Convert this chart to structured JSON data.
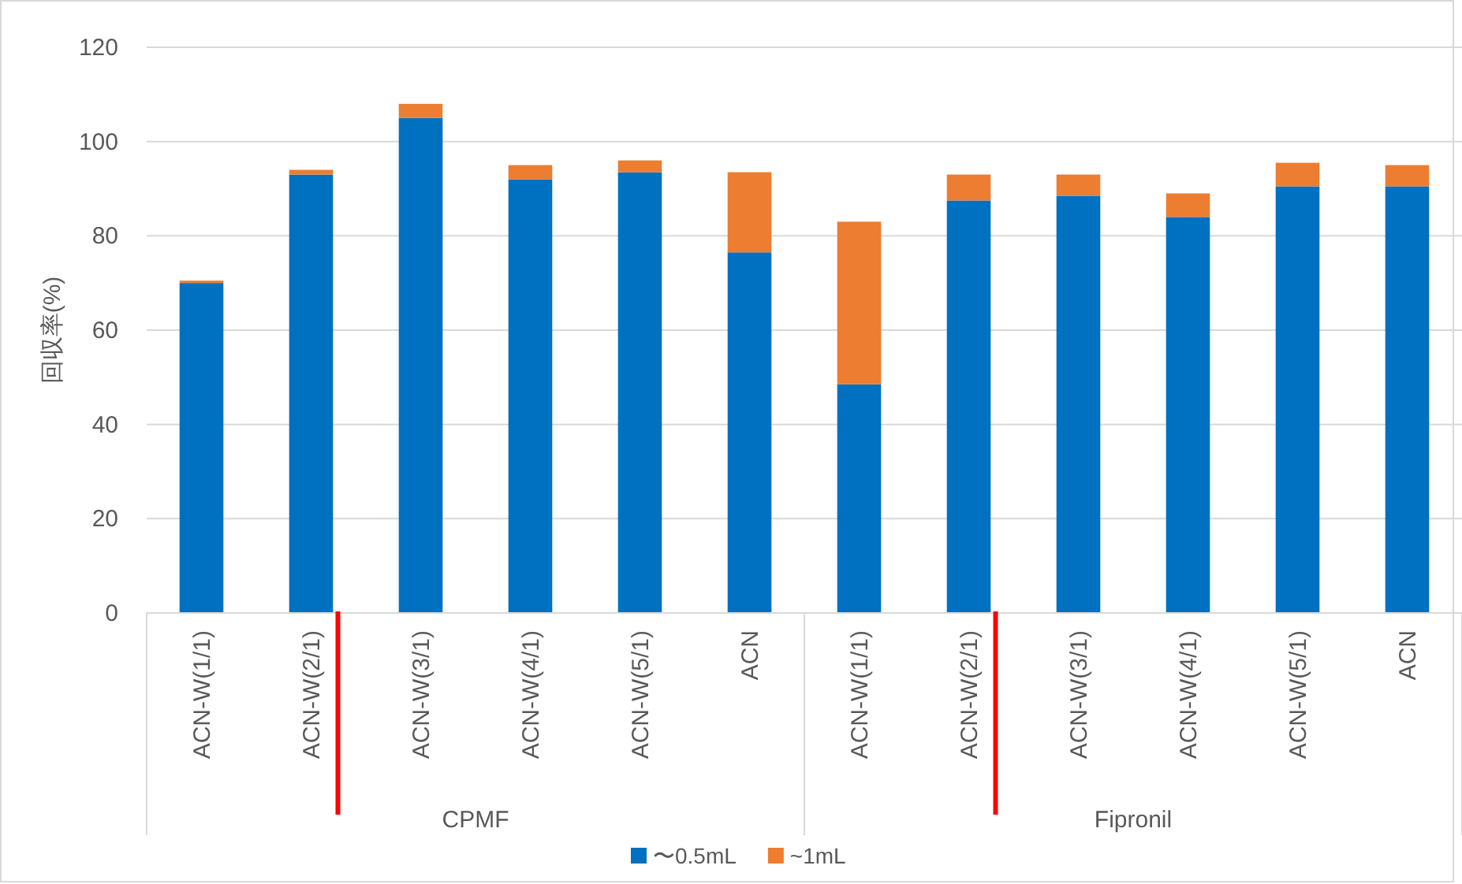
{
  "chart_data": {
    "type": "bar",
    "stacked": true,
    "ylabel": "回収率(%)",
    "categories": [
      "ACN-W(1/1)",
      "ACN-W(2/1)",
      "ACN-W(3/1)",
      "ACN-W(4/1)",
      "ACN-W(5/1)",
      "ACN",
      "ACN-W(1/1)",
      "ACN-W(2/1)",
      "ACN-W(3/1)",
      "ACN-W(4/1)",
      "ACN-W(5/1)",
      "ACN"
    ],
    "series": [
      {
        "name": "〜0.5mL",
        "color": "#0070c0",
        "values": [
          70,
          93,
          105,
          92,
          93.5,
          76.5,
          48.5,
          87.5,
          88.5,
          84,
          90.5,
          90.5
        ]
      },
      {
        "name": "~1mL",
        "color": "#ed7d31",
        "values": [
          0.5,
          1,
          3,
          3,
          2.5,
          17,
          34.5,
          5.5,
          4.5,
          5,
          5,
          4.5
        ]
      }
    ],
    "annotations": [
      "CPMF",
      "Fipronil"
    ],
    "ylim": [
      0,
      120
    ],
    "yticks": [
      0,
      20,
      40,
      60,
      80,
      100,
      120
    ],
    "grid": "y",
    "legend": "bottom"
  }
}
